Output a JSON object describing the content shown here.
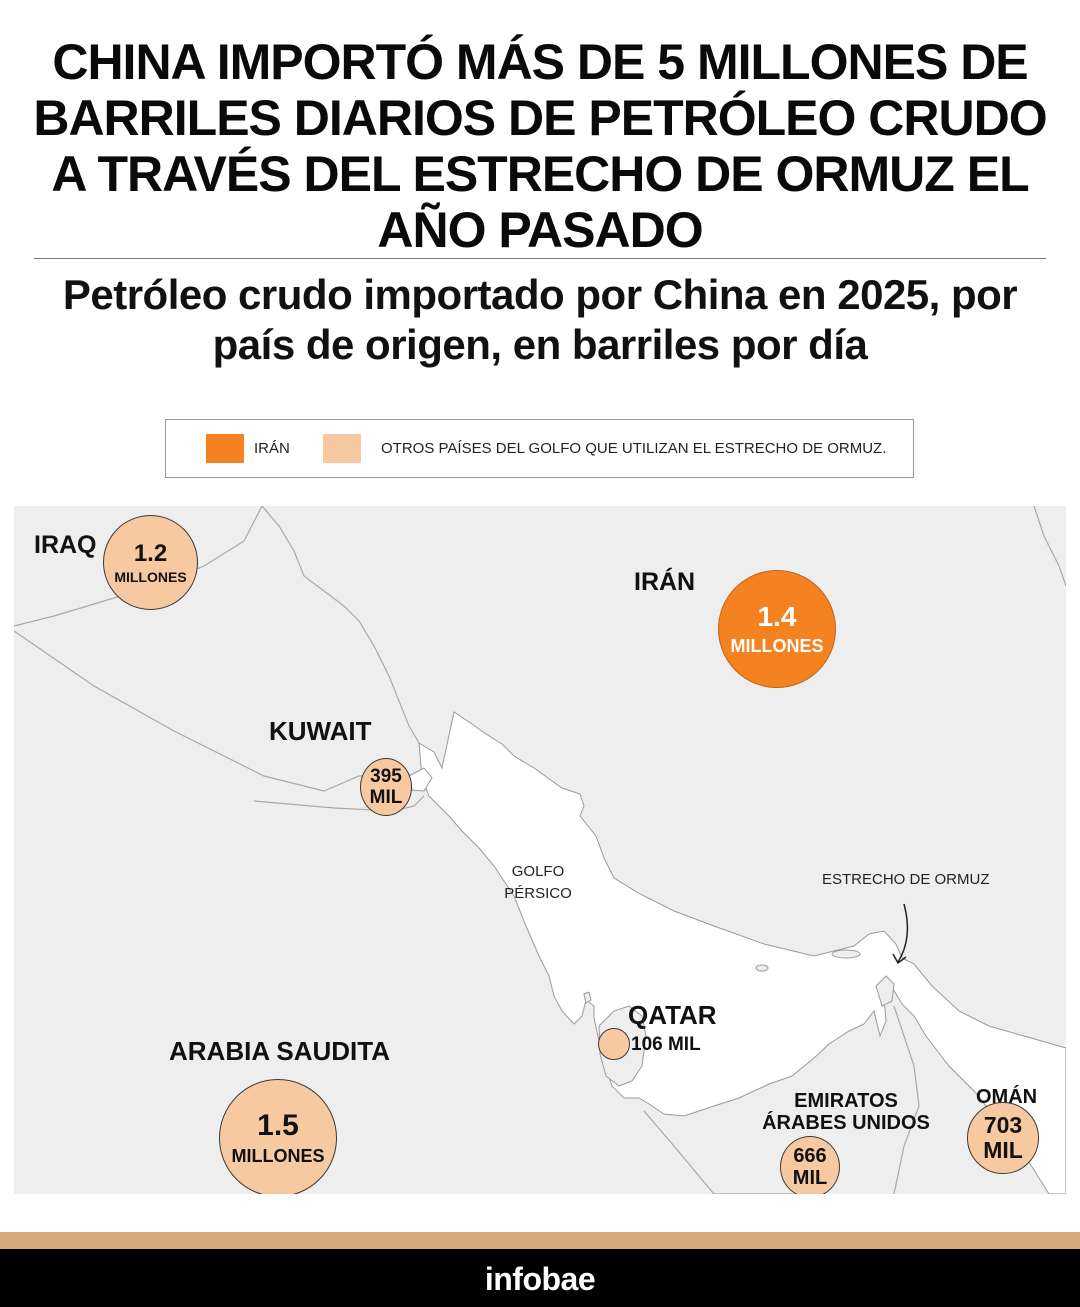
{
  "headline": "CHINA IMPORTÓ MÁS DE 5 MILLONES DE BARRILES DIARIOS DE PETRÓLEO CRUDO A TRAVÉS DEL ESTRECHO DE ORMUZ EL AÑO PASADO",
  "subtitle": "Petróleo crudo importado por China en 2025, por país de origen, en barriles por día",
  "legend": {
    "iran_label": "IRÁN",
    "other_label": "OTROS PAÍSES DEL GOLFO QUE UTILIZAN EL ESTRECHO DE ORMUZ.",
    "iran_color": "#f58220",
    "other_color": "#f7c9a1"
  },
  "map": {
    "land_color": "#eeeeee",
    "water_color": "#ffffff",
    "water_labels": {
      "gulf_line1": "GOLFO",
      "gulf_line2": "PÉRSICO",
      "strait": "ESTRECHO DE ORMUZ"
    },
    "countries": {
      "iraq": {
        "name": "IRAQ",
        "value": "1.2",
        "unit": "MILLONES",
        "barrels_per_day": 1200000
      },
      "iran": {
        "name": "IRÁN",
        "value": "1.4",
        "unit": "MILLONES",
        "barrels_per_day": 1400000
      },
      "kuwait": {
        "name": "KUWAIT",
        "value": "395",
        "unit": "MIL",
        "barrels_per_day": 395000
      },
      "qatar": {
        "name": "QATAR",
        "value": "106",
        "unit": "MIL",
        "display": "106 MIL",
        "barrels_per_day": 106000
      },
      "saudi": {
        "name": "ARABIA SAUDITA",
        "value": "1.5",
        "unit": "MILLONES",
        "barrels_per_day": 1500000
      },
      "uae": {
        "name_line1": "EMIRATOS",
        "name_line2": "ÁRABES UNIDOS",
        "value": "666",
        "unit": "MIL",
        "barrels_per_day": 666000
      },
      "oman": {
        "name": "OMÁN",
        "value": "703",
        "unit": "MIL",
        "barrels_per_day": 703000
      }
    }
  },
  "footer": {
    "brand": "infobae"
  }
}
